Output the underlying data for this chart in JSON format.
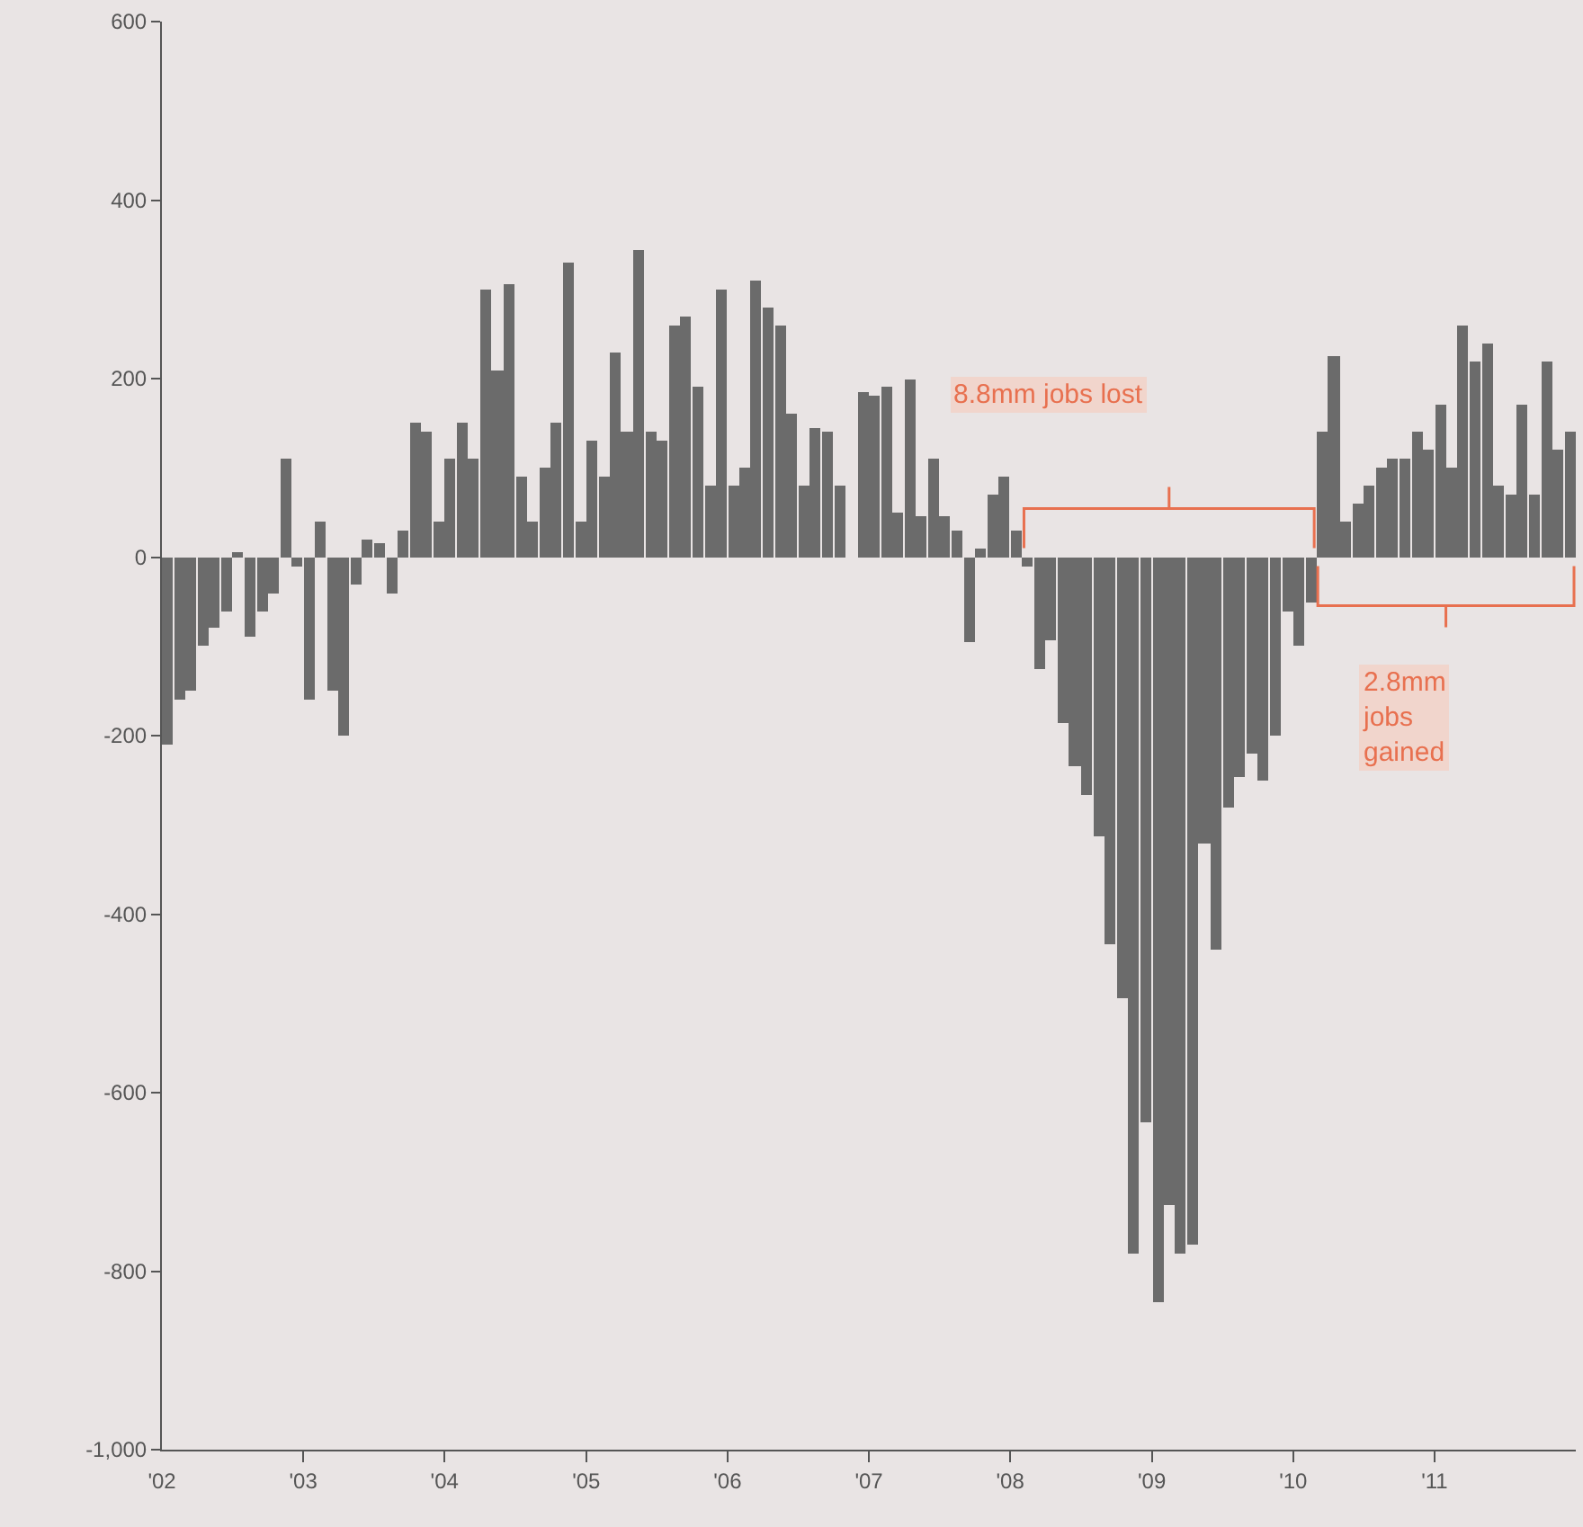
{
  "chart_data": {
    "type": "bar",
    "x": [
      "2002-01",
      "2002-02",
      "2002-03",
      "2002-04",
      "2002-05",
      "2002-06",
      "2002-07",
      "2002-08",
      "2002-09",
      "2002-10",
      "2002-11",
      "2002-12",
      "2003-01",
      "2003-02",
      "2003-03",
      "2003-04",
      "2003-05",
      "2003-06",
      "2003-07",
      "2003-08",
      "2003-09",
      "2003-10",
      "2003-11",
      "2003-12",
      "2004-01",
      "2004-02",
      "2004-03",
      "2004-04",
      "2004-05",
      "2004-06",
      "2004-07",
      "2004-08",
      "2004-09",
      "2004-10",
      "2004-11",
      "2004-12",
      "2005-01",
      "2005-02",
      "2005-03",
      "2005-04",
      "2005-05",
      "2005-06",
      "2005-07",
      "2005-08",
      "2005-09",
      "2005-10",
      "2005-11",
      "2005-12",
      "2006-01",
      "2006-02",
      "2006-03",
      "2006-04",
      "2006-05",
      "2006-06",
      "2006-07",
      "2006-08",
      "2006-09",
      "2006-10",
      "2006-11",
      "2006-12",
      "2007-01",
      "2007-02",
      "2007-03",
      "2007-04",
      "2007-05",
      "2007-06",
      "2007-07",
      "2007-08",
      "2007-09",
      "2007-10",
      "2007-11",
      "2007-12",
      "2008-01",
      "2008-02",
      "2008-03",
      "2008-04",
      "2008-05",
      "2008-06",
      "2008-07",
      "2008-08",
      "2008-09",
      "2008-10",
      "2008-11",
      "2008-12",
      "2009-01",
      "2009-02",
      "2009-03",
      "2009-04",
      "2009-05",
      "2009-06",
      "2009-07",
      "2009-08",
      "2009-09",
      "2009-10",
      "2009-11",
      "2009-12",
      "2010-01",
      "2010-02",
      "2010-03",
      "2010-04",
      "2010-05",
      "2010-06",
      "2010-07",
      "2010-08",
      "2010-09",
      "2010-10",
      "2010-11",
      "2010-12",
      "2011-01",
      "2011-02",
      "2011-03",
      "2011-04",
      "2011-05",
      "2011-06",
      "2011-07",
      "2011-08",
      "2011-09",
      "2011-10",
      "2011-11",
      "2011-12"
    ],
    "values": [
      -210,
      -160,
      -150,
      -100,
      -80,
      -60,
      5,
      -90,
      -60,
      -40,
      110,
      -10,
      -160,
      40,
      -150,
      -200,
      -30,
      20,
      15,
      -40,
      30,
      150,
      140,
      40,
      110,
      150,
      110,
      300,
      210,
      305,
      90,
      40,
      100,
      150,
      330,
      40,
      130,
      90,
      230,
      140,
      345,
      140,
      130,
      260,
      270,
      190,
      80,
      300,
      80,
      100,
      310,
      280,
      260,
      160,
      80,
      145,
      140,
      80,
      0,
      185,
      180,
      190,
      50,
      200,
      45,
      110,
      45,
      30,
      -95,
      10,
      70,
      90,
      30,
      -10,
      -126,
      -94,
      -186,
      -234,
      -266,
      -313,
      -434,
      -494,
      -780,
      -634,
      -834,
      -726,
      -780,
      -770,
      -320,
      -440,
      -280,
      -246,
      -220,
      -250,
      -200,
      -60,
      -100,
      -50,
      140,
      226,
      40,
      60,
      80,
      100,
      110,
      110,
      140,
      120,
      170,
      100,
      260,
      220,
      240,
      80,
      70,
      170,
      70,
      220,
      120,
      140
    ],
    "color": "#6b6b6b",
    "xlim": [
      "2002-01-01",
      "2012-01-01"
    ],
    "xticks": [
      {
        "value": "2002-01-01",
        "label": "'02"
      },
      {
        "value": "2003-01-01",
        "label": "'03"
      },
      {
        "value": "2004-01-01",
        "label": "'04"
      },
      {
        "value": "2005-01-01",
        "label": "'05"
      },
      {
        "value": "2006-01-01",
        "label": "'06"
      },
      {
        "value": "2007-01-01",
        "label": "'07"
      },
      {
        "value": "2008-01-01",
        "label": "'08"
      },
      {
        "value": "2009-01-01",
        "label": "'09"
      },
      {
        "value": "2010-01-01",
        "label": "'10"
      },
      {
        "value": "2011-01-01",
        "label": "'11"
      }
    ],
    "ylim": [
      -1000,
      600
    ],
    "yticks": [
      {
        "value": -1000,
        "label": "-1,000"
      },
      -800,
      -600,
      -400,
      -200,
      0,
      200,
      400,
      600
    ],
    "annotations": [
      "8.8mm jobs lost",
      "2.8mm\njobs\ngained"
    ]
  }
}
